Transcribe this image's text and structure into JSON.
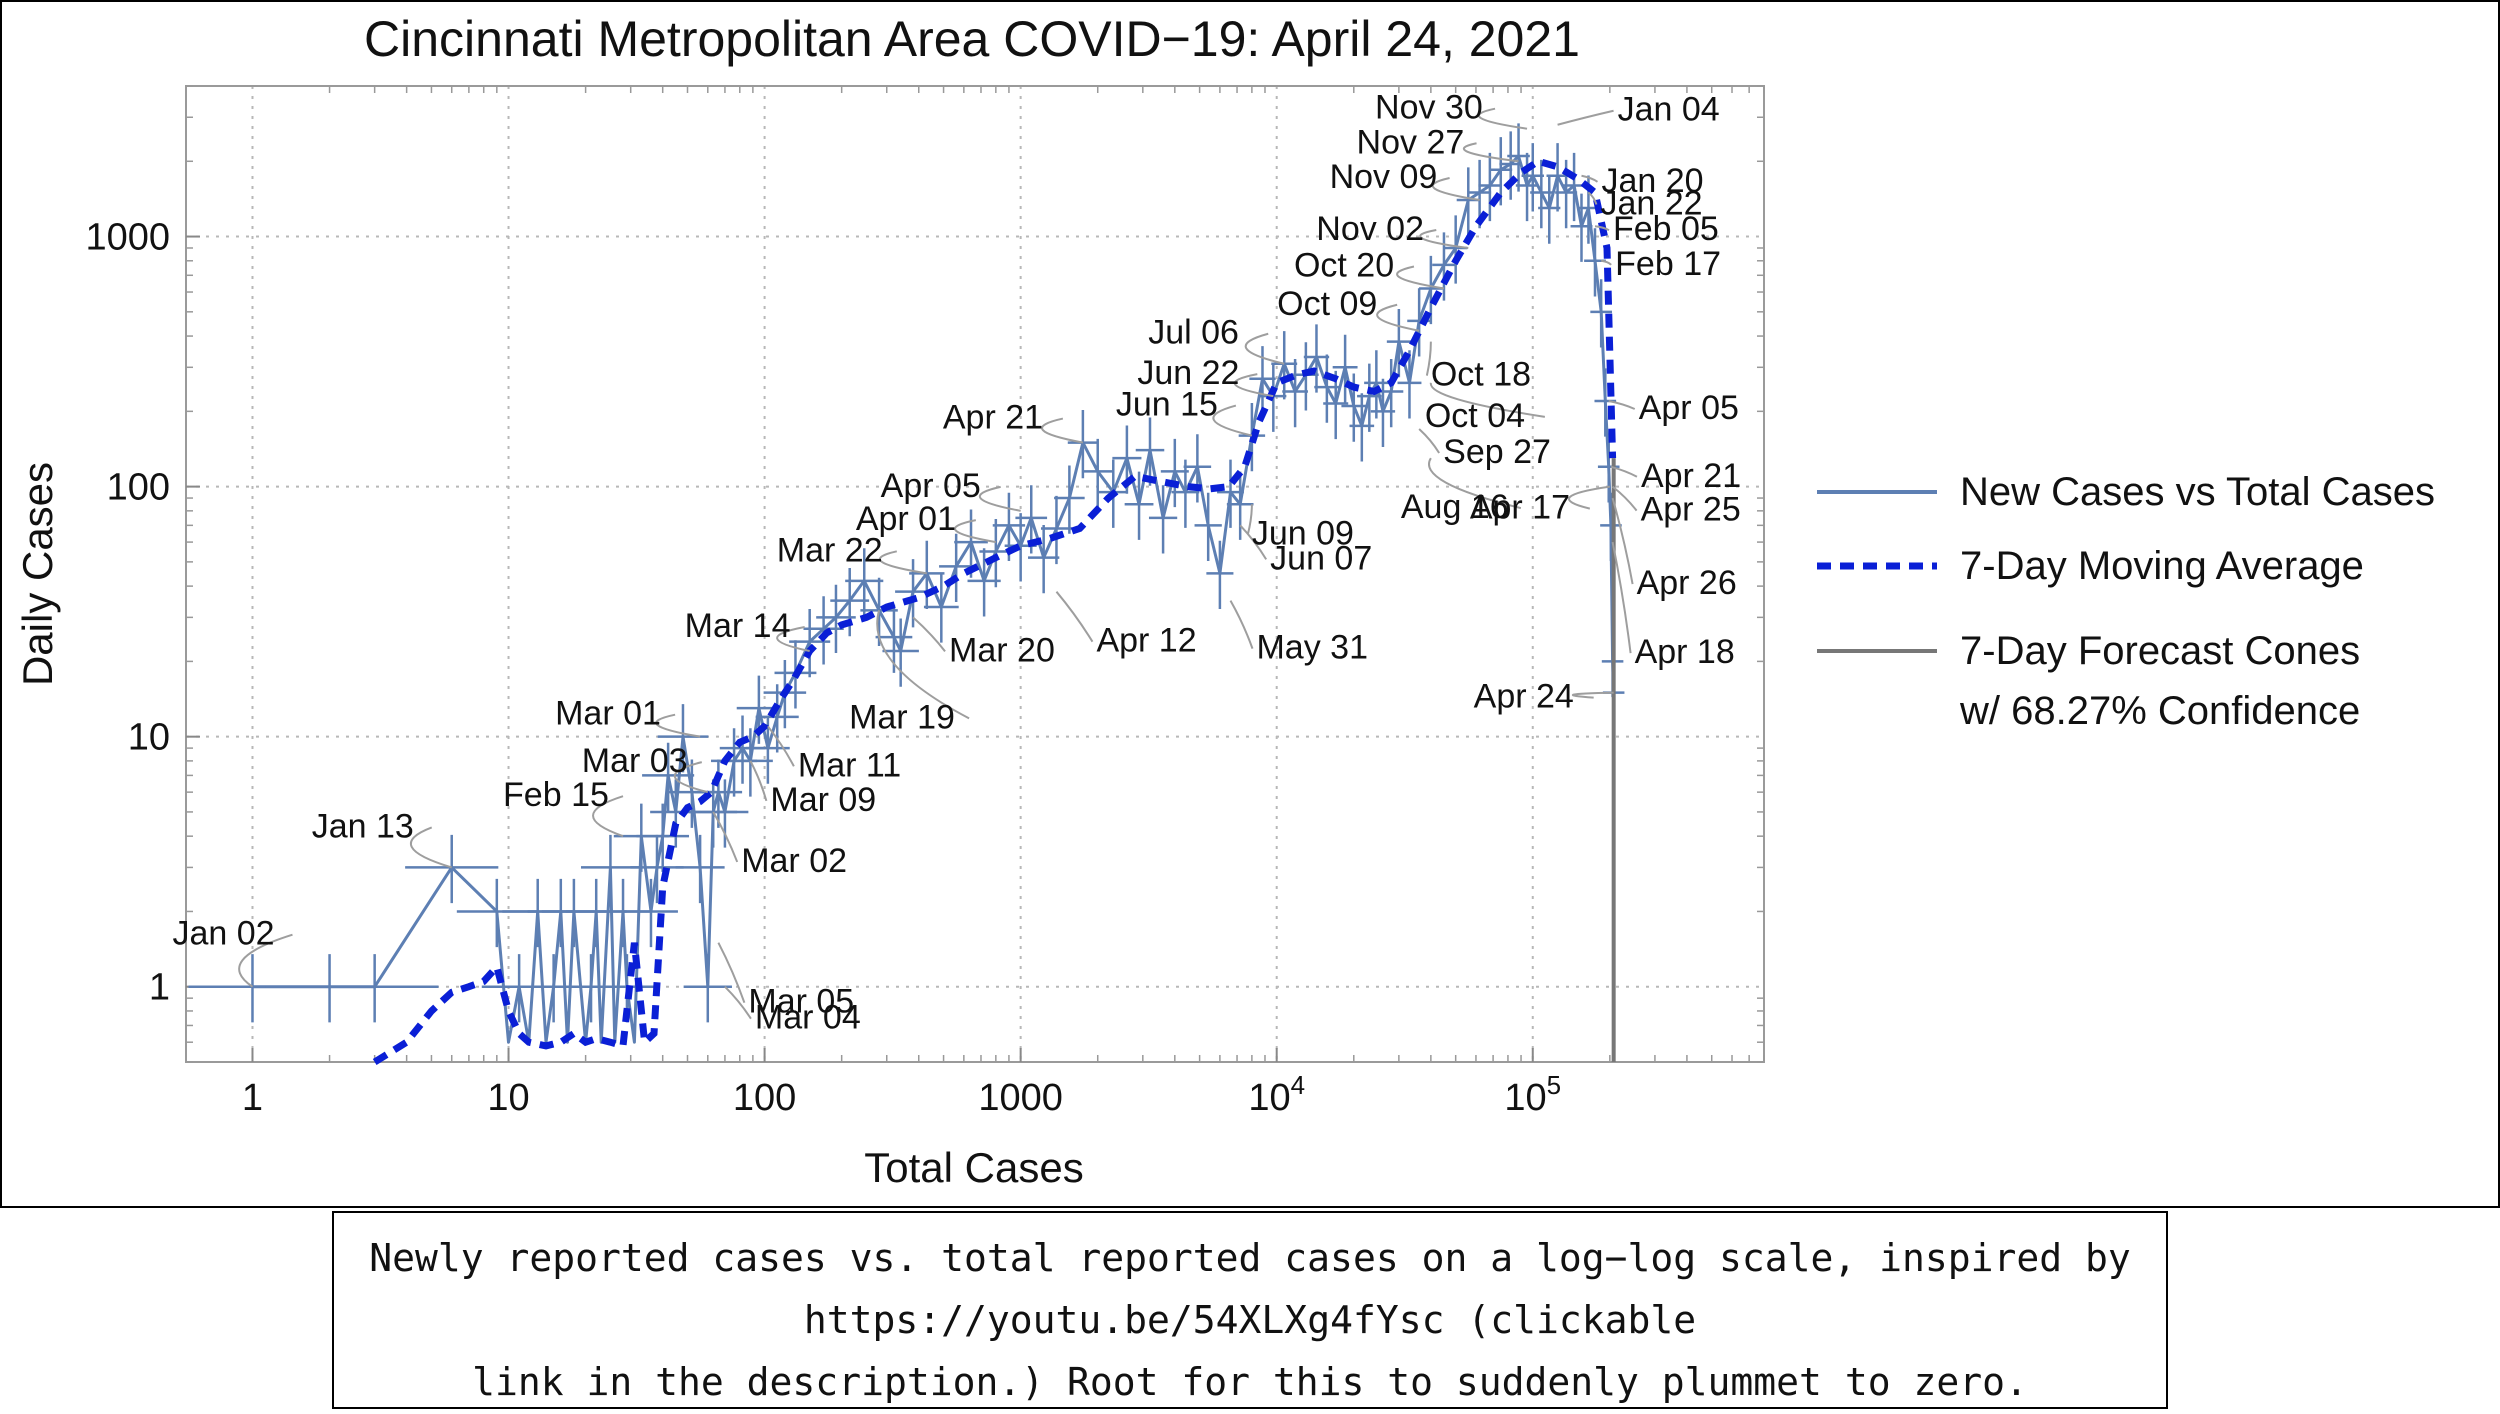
{
  "chart_data": {
    "type": "line",
    "title": "Cincinnati Metropolitan Area COVID−19: April 24, 2021",
    "xlabel": "Total Cases",
    "ylabel": "Daily Cases",
    "xscale": "log",
    "yscale": "log",
    "xlim": [
      0.55,
      800000
    ],
    "ylim": [
      0.5,
      4000
    ],
    "grid": true,
    "legend_position": "right",
    "x_ticks": [
      {
        "value": 1,
        "label": "1",
        "exp": ""
      },
      {
        "value": 10,
        "label": "10",
        "exp": ""
      },
      {
        "value": 100,
        "label": "100",
        "exp": ""
      },
      {
        "value": 1000,
        "label": "1000",
        "exp": ""
      },
      {
        "value": 10000,
        "label": "10",
        "exp": "4"
      },
      {
        "value": 100000,
        "label": "10",
        "exp": "5"
      }
    ],
    "y_ticks": [
      {
        "value": 1,
        "label": "1"
      },
      {
        "value": 10,
        "label": "10"
      },
      {
        "value": 100,
        "label": "100"
      },
      {
        "value": 1000,
        "label": "1000"
      }
    ],
    "colors": {
      "new_cases": "#5d7fb3",
      "moving_average": "#0a1fd6",
      "forecast": "#777777"
    },
    "series": [
      {
        "name": "New Cases vs Total Cases",
        "x": [
          1,
          2,
          3,
          6,
          9,
          10,
          11,
          12,
          13,
          14,
          15,
          16,
          17,
          18,
          20,
          21,
          22,
          23,
          25,
          26,
          28,
          29,
          31,
          33,
          36,
          38,
          40,
          42,
          45,
          48,
          52,
          56,
          60,
          63,
          66,
          70,
          76,
          82,
          88,
          95,
          103,
          112,
          120,
          132,
          150,
          170,
          190,
          215,
          245,
          280,
          320,
          340,
          380,
          430,
          490,
          560,
          640,
          720,
          800,
          900,
          1000,
          1100,
          1230,
          1380,
          1550,
          1750,
          2000,
          2300,
          2600,
          2900,
          3200,
          3600,
          4000,
          4400,
          4900,
          5400,
          6000,
          6600,
          7200,
          8000,
          8800,
          9700,
          10700,
          11800,
          13000,
          14300,
          15700,
          17000,
          18500,
          20000,
          21500,
          23000,
          24500,
          26000,
          28000,
          30000,
          33000,
          36000,
          40000,
          45000,
          50000,
          56000,
          62000,
          68000,
          75000,
          82000,
          88000,
          95000,
          100000,
          108000,
          116000,
          125000,
          135000,
          145000,
          155000,
          165000,
          175000,
          185000,
          192000,
          198000,
          202000,
          205000,
          207000
        ],
        "values": [
          1,
          1,
          1,
          3,
          2,
          0.6,
          1,
          0.6,
          2,
          0.6,
          1,
          2,
          0.6,
          2,
          0.6,
          1,
          2,
          0.6,
          3,
          0.6,
          2,
          1,
          0.6,
          4,
          2,
          3,
          4,
          7,
          5,
          10,
          6,
          3,
          1,
          5,
          6,
          5,
          8,
          9,
          8,
          13,
          9,
          12,
          15,
          18,
          24,
          27,
          30,
          35,
          42,
          32,
          25,
          22,
          38,
          45,
          33,
          48,
          60,
          42,
          55,
          70,
          58,
          75,
          52,
          68,
          90,
          150,
          115,
          95,
          130,
          85,
          140,
          75,
          115,
          95,
          120,
          70,
          45,
          95,
          85,
          160,
          270,
          230,
          310,
          240,
          280,
          330,
          250,
          215,
          300,
          210,
          175,
          230,
          260,
          200,
          240,
          380,
          260,
          460,
          620,
          770,
          900,
          1400,
          1500,
          1600,
          1850,
          1950,
          2100,
          1600,
          1750,
          1500,
          1300,
          1750,
          1500,
          1600,
          1100,
          1300,
          800,
          500,
          220,
          120,
          70,
          20,
          15
        ]
      },
      {
        "name": "7-Day Moving Average",
        "x": [
          3,
          4,
          5,
          6,
          7,
          8,
          9,
          10,
          11,
          12,
          14,
          16,
          18,
          20,
          22,
          25,
          28,
          31,
          34,
          37,
          40,
          45,
          50,
          56,
          62,
          70,
          80,
          90,
          100,
          115,
          130,
          150,
          175,
          200,
          250,
          300,
          400,
          500,
          600,
          800,
          1000,
          1300,
          1700,
          2200,
          2800,
          3500,
          4500,
          5500,
          6500,
          7500,
          8500,
          10000,
          12000,
          14000,
          17000,
          20000,
          24000,
          28000,
          33000,
          40000,
          50000,
          60000,
          75000,
          90000,
          105000,
          125000,
          150000,
          175000,
          195000,
          205000
        ],
        "values": [
          0.5,
          0.6,
          0.8,
          0.95,
          1.0,
          1.05,
          1.2,
          0.8,
          0.65,
          0.6,
          0.58,
          0.6,
          0.65,
          0.6,
          0.62,
          0.6,
          0.58,
          1.5,
          0.6,
          0.65,
          2.5,
          4.5,
          5.2,
          5.5,
          6.0,
          8.0,
          9.5,
          10.0,
          11.0,
          14.0,
          17.0,
          22.0,
          26.0,
          28.0,
          30.0,
          33.0,
          36.0,
          40.0,
          45.0,
          52.0,
          58.0,
          62.0,
          68.0,
          90.0,
          110.0,
          105.0,
          100.0,
          98.0,
          100.0,
          120.0,
          180.0,
          260.0,
          280.0,
          290.0,
          270.0,
          250.0,
          240.0,
          260.0,
          350.0,
          520.0,
          800.0,
          1100.0,
          1500.0,
          1800.0,
          2000.0,
          1900.0,
          1700.0,
          1500.0,
          900.0,
          130.0
        ]
      },
      {
        "name": "7-Day Forecast Cones\nw/ 68.27% Confidence",
        "x": [
          207000,
          207000
        ],
        "values": [
          130,
          0.5
        ]
      }
    ],
    "annotations": [
      {
        "label": "Jan 02",
        "x": 1,
        "y": 1
      },
      {
        "label": "Jan 13",
        "x": 6,
        "y": 3
      },
      {
        "label": "Feb 15",
        "x": 28,
        "y": 4
      },
      {
        "label": "Mar 01",
        "x": 56,
        "y": 10
      },
      {
        "label": "Mar 03",
        "x": 60,
        "y": 6
      },
      {
        "label": "Mar 02",
        "x": 63,
        "y": 5
      },
      {
        "label": "Mar 05",
        "x": 66,
        "y": 1.5
      },
      {
        "label": "Mar 04",
        "x": 70,
        "y": 1
      },
      {
        "label": "Mar 09",
        "x": 88,
        "y": 8
      },
      {
        "label": "Mar 11",
        "x": 103,
        "y": 11
      },
      {
        "label": "Mar 14",
        "x": 150,
        "y": 22
      },
      {
        "label": "Mar 19",
        "x": 280,
        "y": 32
      },
      {
        "label": "Mar 20",
        "x": 380,
        "y": 30
      },
      {
        "label": "Mar 22",
        "x": 430,
        "y": 45
      },
      {
        "label": "Apr 01",
        "x": 800,
        "y": 60
      },
      {
        "label": "Apr 05",
        "x": 1000,
        "y": 80
      },
      {
        "label": "Apr 12",
        "x": 1380,
        "y": 38
      },
      {
        "label": "Apr 21",
        "x": 1750,
        "y": 150
      },
      {
        "label": "May 31",
        "x": 6600,
        "y": 35
      },
      {
        "label": "Jun 07",
        "x": 7200,
        "y": 70
      },
      {
        "label": "Jun 09",
        "x": 8000,
        "y": 85
      },
      {
        "label": "Jun 15",
        "x": 8000,
        "y": 160
      },
      {
        "label": "Jun 22",
        "x": 9700,
        "y": 230
      },
      {
        "label": "Jul 06",
        "x": 10700,
        "y": 310
      },
      {
        "label": "Aug 16",
        "x": 40000,
        "y": 130
      },
      {
        "label": "Sep 27",
        "x": 36000,
        "y": 170
      },
      {
        "label": "Oct 04",
        "x": 40000,
        "y": 260
      },
      {
        "label": "Oct 09",
        "x": 36000,
        "y": 420
      },
      {
        "label": "Oct 18",
        "x": 40000,
        "y": 380
      },
      {
        "label": "Oct 20",
        "x": 45000,
        "y": 620
      },
      {
        "label": "Nov 02",
        "x": 56000,
        "y": 900
      },
      {
        "label": "Nov 09",
        "x": 62000,
        "y": 1400
      },
      {
        "label": "Nov 27",
        "x": 88000,
        "y": 2000
      },
      {
        "label": "Nov 30",
        "x": 95000,
        "y": 2700
      },
      {
        "label": "Jan 04",
        "x": 125000,
        "y": 2800
      },
      {
        "label": "Jan 20",
        "x": 155000,
        "y": 1750
      },
      {
        "label": "Jan 22",
        "x": 165000,
        "y": 1500
      },
      {
        "label": "Feb 05",
        "x": 175000,
        "y": 1100
      },
      {
        "label": "Feb 17",
        "x": 185000,
        "y": 800
      },
      {
        "label": "Apr 05",
        "x": 198000,
        "y": 220
      },
      {
        "label": "Apr 17",
        "x": 200000,
        "y": 100
      },
      {
        "label": "Apr 21",
        "x": 202000,
        "y": 120
      },
      {
        "label": "Apr 25",
        "x": 205000,
        "y": 100
      },
      {
        "label": "Apr 26",
        "x": 205000,
        "y": 90
      },
      {
        "label": "Apr 18",
        "x": 205000,
        "y": 60
      },
      {
        "label": "Apr 24",
        "x": 207000,
        "y": 15
      }
    ]
  },
  "caption": {
    "line1": "Newly reported cases vs. total reported cases on a log−log scale, inspired by",
    "line2": "https://youtu.be/54XLXg4fYsc (clickable",
    "line3": "link in the description.) Root for this to suddenly plummet to zero."
  }
}
